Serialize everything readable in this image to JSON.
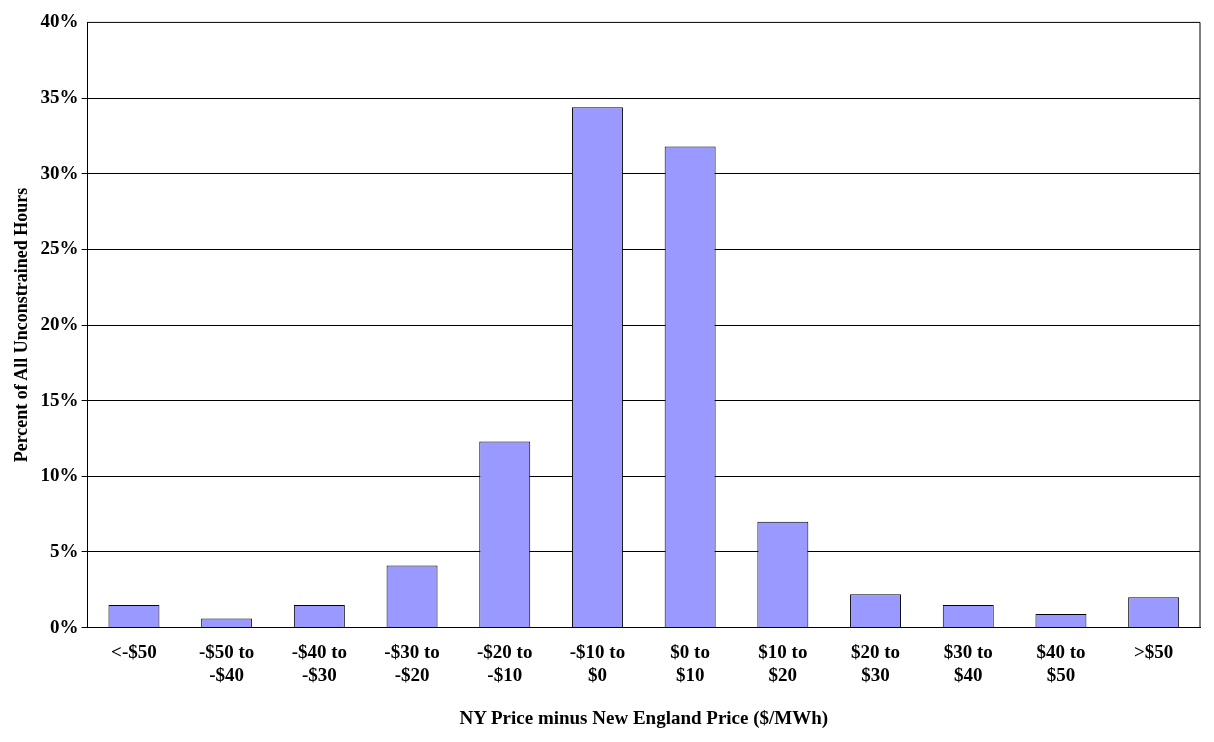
{
  "chart_data": {
    "type": "bar",
    "xlabel": "NY Price minus New England Price ($/MWh)",
    "ylabel": "Percent of All Unconstrained Hours",
    "categories": [
      "<-$50",
      "-$50 to -$40",
      "-$40 to -$30",
      "-$30 to -$20",
      "-$20 to -$10",
      "-$10 to $0",
      "$0 to $10",
      "$10 to $20",
      "$20 to $30",
      "$30 to $40",
      "$40 to $50",
      ">$50"
    ],
    "values": [
      1.5,
      0.6,
      1.5,
      4.1,
      12.3,
      34.4,
      31.8,
      7.0,
      2.2,
      1.5,
      0.9,
      2.0
    ],
    "color": "#9999ff",
    "ylim": [
      0,
      40
    ],
    "yticks": [
      {
        "value": 0,
        "label": "0%"
      },
      {
        "value": 5,
        "label": "5%"
      },
      {
        "value": 10,
        "label": "10%"
      },
      {
        "value": 15,
        "label": "15%"
      },
      {
        "value": 20,
        "label": "20%"
      },
      {
        "value": 25,
        "label": "25%"
      },
      {
        "value": 30,
        "label": "30%"
      },
      {
        "value": 35,
        "label": "35%"
      },
      {
        "value": 40,
        "label": "40%"
      }
    ],
    "grid": "y",
    "legend": false
  }
}
